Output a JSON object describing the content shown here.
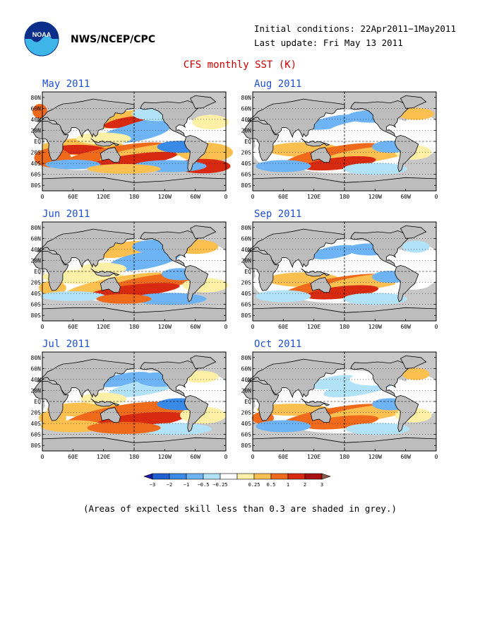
{
  "header": {
    "org": "NWS/NCEP/CPC",
    "initial_conditions": "Initial conditions: 22Apr2011−1May2011",
    "last_update": "Last update: Fri May 13 2011",
    "title": "CFS monthly SST (K)"
  },
  "logo": {
    "text": "NOAA"
  },
  "axes": {
    "lat_labels": [
      "80N",
      "60N",
      "40N",
      "20N",
      "EQ",
      "20S",
      "40S",
      "60S",
      "80S"
    ],
    "lon_labels": [
      "0",
      "60E",
      "120E",
      "180",
      "120W",
      "60W",
      "0"
    ]
  },
  "panels": [
    {
      "title": "May 2011"
    },
    {
      "title": "Jun 2011"
    },
    {
      "title": "Jul 2011"
    },
    {
      "title": "Aug 2011"
    },
    {
      "title": "Sep 2011"
    },
    {
      "title": "Oct 2011"
    }
  ],
  "colorbar": {
    "labels": [
      "−3",
      "−2",
      "−1",
      "−0.5",
      "−0.25",
      "0.25",
      "0.5",
      "1",
      "2",
      "3"
    ],
    "colors": [
      "#1a1aa0",
      "#2060d0",
      "#3a8ae8",
      "#6eb4f4",
      "#b2e2f8",
      "#ffffff",
      "#fff0a8",
      "#fcc050",
      "#f06a1c",
      "#d82a10",
      "#a81010",
      "#8b5a4a"
    ]
  },
  "colors": {
    "land": "#c0c0c0",
    "title": "#cc0000",
    "panel_title": "#1f4fd6"
  },
  "note": "(Areas of expected skill less than 0.3 are shaded in grey.)"
}
